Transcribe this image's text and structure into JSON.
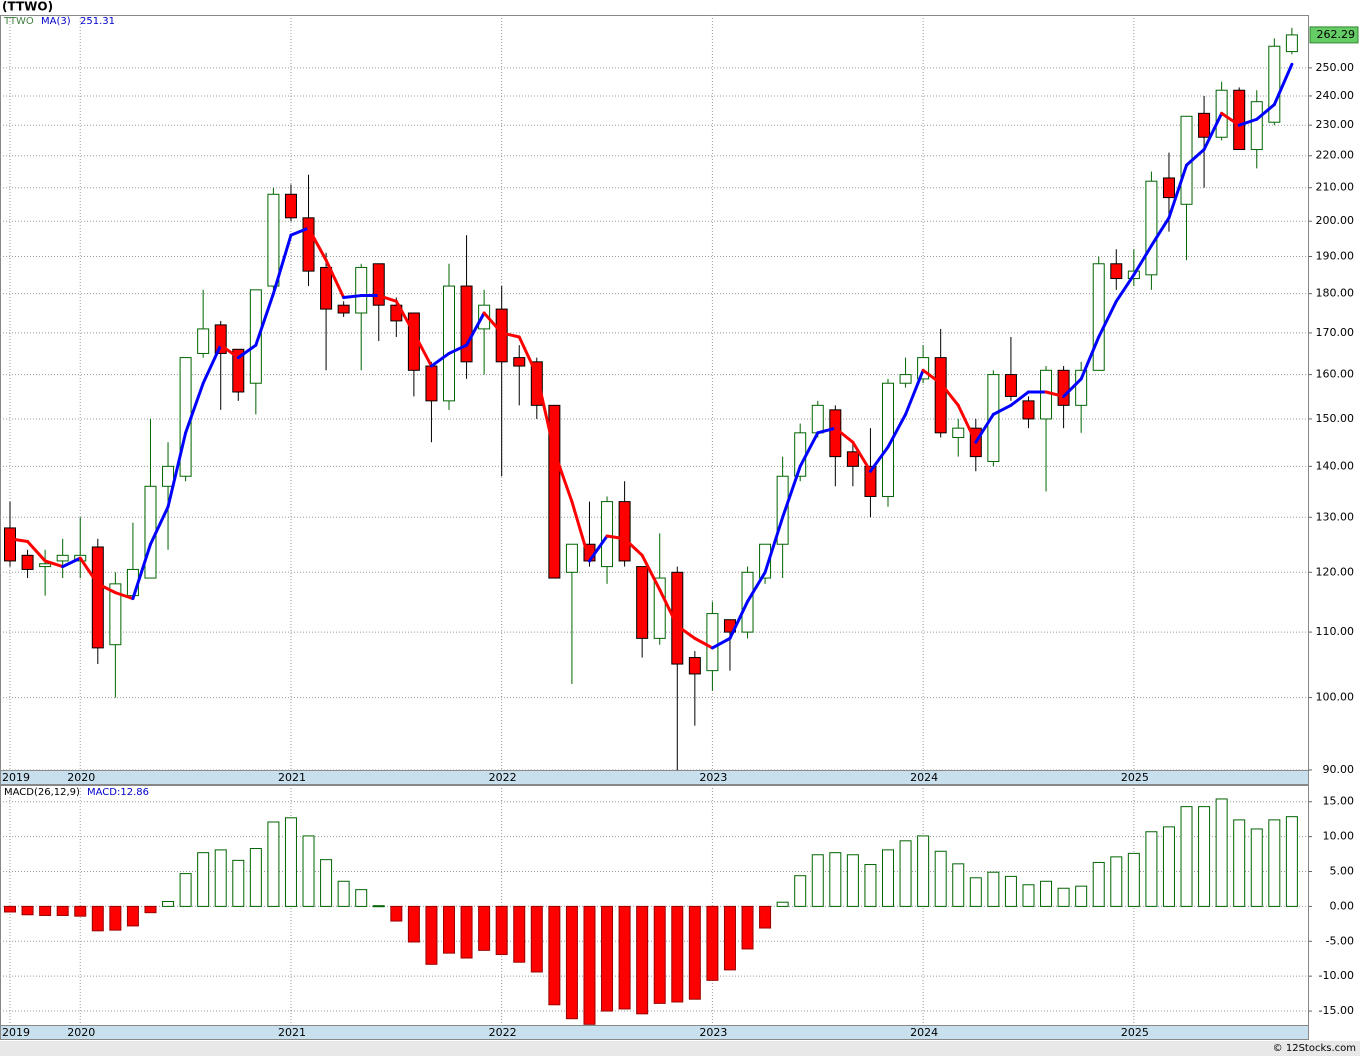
{
  "chart_data": [
    {
      "type": "candlestick",
      "title": "(TTWO)",
      "symbol": "TTWO",
      "log_scale": true,
      "grid": true,
      "up_color": "#006400",
      "down_color": "#ff0000",
      "open": [
        128,
        123,
        121,
        122,
        122,
        124.5,
        108,
        116,
        119,
        136,
        138,
        165,
        172,
        166,
        158,
        182,
        208,
        201,
        187,
        177,
        175,
        188,
        177,
        175,
        162,
        154,
        182,
        171,
        176,
        164,
        163,
        153,
        120,
        125,
        121,
        133,
        121,
        109,
        120,
        106,
        104,
        112,
        110,
        119,
        125,
        138,
        147,
        152,
        143,
        140,
        134,
        158,
        159,
        164,
        146,
        148,
        141,
        160,
        154,
        150,
        161,
        153,
        161,
        188,
        184,
        185,
        213,
        205,
        234,
        226,
        242,
        222,
        231,
        256
      ],
      "high": [
        133,
        124,
        124,
        126,
        130,
        126,
        120,
        129,
        150,
        145,
        164,
        181,
        173,
        166,
        181,
        210,
        211,
        214,
        191,
        178,
        188,
        188,
        179,
        175,
        163,
        188,
        196,
        181,
        182,
        167,
        164,
        153,
        125,
        133,
        134,
        137,
        121,
        127,
        121,
        107,
        115,
        112,
        121,
        125,
        142,
        149,
        154,
        153,
        145,
        148,
        159,
        164,
        167,
        171,
        150,
        150,
        161,
        169,
        155,
        162,
        162,
        163,
        190,
        192,
        192,
        215,
        221,
        233,
        240,
        245,
        243,
        242,
        261,
        265
      ],
      "low": [
        121,
        119,
        116,
        119,
        119,
        105,
        100,
        116,
        119,
        124,
        137,
        164,
        152,
        154,
        151,
        181,
        200,
        182,
        161,
        174,
        161,
        168,
        169,
        155,
        145,
        152,
        159,
        160,
        138,
        153,
        150,
        119,
        102,
        121,
        118,
        121,
        106,
        108,
        90,
        96,
        101,
        104,
        109,
        118,
        119,
        137,
        146,
        136,
        136,
        130,
        132,
        157,
        158,
        146,
        142,
        139,
        140,
        154,
        148,
        135,
        148,
        147,
        161,
        181,
        182,
        181,
        197,
        189,
        210,
        225,
        222,
        216,
        230,
        255
      ],
      "close": [
        122,
        120.5,
        121.5,
        123,
        123,
        107.5,
        118,
        120.5,
        136,
        140,
        164,
        171,
        165,
        156,
        181,
        208,
        201,
        186,
        176,
        175,
        187,
        177,
        173,
        161,
        154,
        182,
        163,
        177,
        163,
        162,
        153,
        119,
        125,
        122,
        133,
        122,
        109,
        119,
        105,
        103.5,
        113,
        110,
        120,
        125,
        138,
        147,
        153,
        142,
        140,
        134,
        158,
        160,
        164,
        147,
        148,
        142,
        160,
        155,
        150,
        161,
        153,
        161,
        188,
        184,
        186,
        212,
        207,
        233,
        226,
        242,
        222,
        238,
        258,
        262.29
      ],
      "ma": {
        "name": "MA(3)",
        "up_color": "#0000ff",
        "down_color": "#ff0000",
        "values": [
          126,
          125.5,
          122,
          121,
          122.5,
          118,
          116.5,
          115.5,
          125,
          132,
          147,
          158,
          167,
          164,
          167,
          180,
          196,
          198,
          189,
          179,
          179.5,
          179.5,
          178,
          170,
          162,
          165,
          167,
          175,
          170,
          169,
          160,
          143,
          133,
          122,
          126.5,
          126,
          123,
          117,
          111,
          109,
          107.5,
          109,
          115,
          120,
          130,
          140,
          147,
          148,
          145,
          139,
          144,
          151,
          161,
          158,
          153,
          145,
          151,
          153,
          156,
          156,
          155,
          159,
          169,
          178,
          185,
          193,
          201,
          217,
          222,
          234,
          230,
          232,
          237,
          251.31
        ]
      },
      "ylim": [
        90,
        270
      ],
      "yticks": [
        {
          "value": 90,
          "label": "90.00"
        },
        {
          "value": 100,
          "label": "100.00"
        },
        {
          "value": 110,
          "label": "110.00"
        },
        {
          "value": 120,
          "label": "120.00"
        },
        {
          "value": 130,
          "label": "130.00"
        },
        {
          "value": 140,
          "label": "140.00"
        },
        {
          "value": 150,
          "label": "150.00"
        },
        {
          "value": 160,
          "label": "160.00"
        },
        {
          "value": 170,
          "label": "170.00"
        },
        {
          "value": 180,
          "label": "180.00"
        },
        {
          "value": 190,
          "label": "190.00"
        },
        {
          "value": 200,
          "label": "200.00"
        },
        {
          "value": 210,
          "label": "210.00"
        },
        {
          "value": 220,
          "label": "220.00"
        },
        {
          "value": 230,
          "label": "230.00"
        },
        {
          "value": 240,
          "label": "240.00"
        },
        {
          "value": 250,
          "label": "250.00"
        }
      ],
      "xticks": [
        {
          "value": 0,
          "label": "2019"
        },
        {
          "value": 4,
          "label": "2020"
        },
        {
          "value": 16,
          "label": "2021"
        },
        {
          "value": 28,
          "label": "2022"
        },
        {
          "value": 40,
          "label": "2023"
        },
        {
          "value": 52,
          "label": "2024"
        },
        {
          "value": 64,
          "label": "2025"
        }
      ]
    },
    {
      "type": "bar",
      "title": "MACD(26,12,9)",
      "grid": true,
      "series": [
        {
          "name": "MACD:12.86",
          "up_color": "#006400",
          "down_color": "#ff0000",
          "values": [
            -0.8,
            -1.2,
            -1.3,
            -1.3,
            -1.4,
            -3.5,
            -3.4,
            -2.8,
            -0.9,
            0.7,
            4.7,
            7.7,
            8.1,
            6.6,
            8.3,
            12.1,
            12.7,
            10.1,
            6.7,
            3.6,
            2.4,
            0.1,
            -2.1,
            -5.1,
            -8.3,
            -6.7,
            -7.4,
            -6.3,
            -6.9,
            -8,
            -9.4,
            -14.1,
            -16.1,
            -16.9,
            -15,
            -14.7,
            -15.4,
            -13.9,
            -13.7,
            -13.3,
            -10.6,
            -9.1,
            -6.1,
            -3.1,
            0.6,
            4.4,
            7.4,
            7.7,
            7.4,
            6,
            8.1,
            9.4,
            10.1,
            7.9,
            6.1,
            4.1,
            4.9,
            4.3,
            3.1,
            3.6,
            2.6,
            2.9,
            6.3,
            7.1,
            7.6,
            10.7,
            11.4,
            14.3,
            14.3,
            15.4,
            12.4,
            11.1,
            12.4,
            12.86
          ]
        }
      ],
      "ylim": [
        -17,
        17.4
      ],
      "yticks": [
        {
          "value": -15,
          "label": "-15.00"
        },
        {
          "value": -10,
          "label": "-10.00"
        },
        {
          "value": -5,
          "label": "-5.00"
        },
        {
          "value": 0,
          "label": "0.00"
        },
        {
          "value": 5,
          "label": "5.00"
        },
        {
          "value": 10,
          "label": "10.00"
        },
        {
          "value": 15,
          "label": "15.00"
        }
      ],
      "xticks": [
        {
          "value": 0,
          "label": "2019"
        },
        {
          "value": 4,
          "label": "2020"
        },
        {
          "value": 16,
          "label": "2021"
        },
        {
          "value": 28,
          "label": "2022"
        },
        {
          "value": 40,
          "label": "2023"
        },
        {
          "value": 52,
          "label": "2024"
        },
        {
          "value": 64,
          "label": "2025"
        }
      ]
    }
  ],
  "footer": "© 12Stocks.com"
}
